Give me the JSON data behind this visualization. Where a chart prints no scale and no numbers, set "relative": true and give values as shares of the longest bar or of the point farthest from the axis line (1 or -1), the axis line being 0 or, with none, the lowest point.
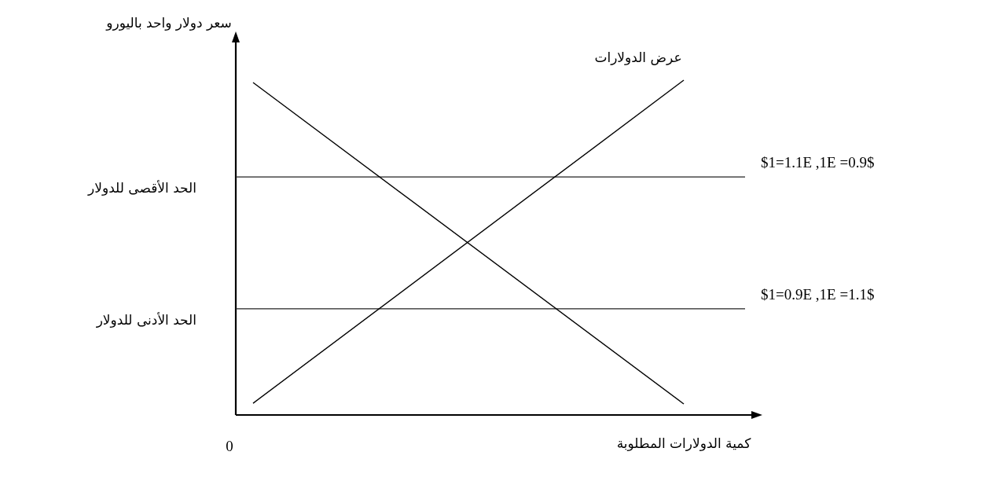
{
  "chart_data": {
    "type": "line",
    "relative": true,
    "categories": [
      null,
      null
    ],
    "xlabel": "كمية الدولارات المطلوبة",
    "ylabel": "سعر دولار واحد باليورو",
    "series": [
      {
        "name": "عرض الدولارات",
        "color": "#000000",
        "values": [
          0.035,
          1
        ]
      },
      {
        "color": "#000000",
        "values": [
          0.993,
          0.033
        ]
      }
    ],
    "ref_lines": [
      {
        "axis": "y",
        "value": 0.711,
        "label": "الحد الأقصى  للدولار",
        "color": "#222222"
      },
      {
        "axis": "y",
        "value": 0.317,
        "label": "الحد الأدنى للدولار",
        "color": "#222222"
      }
    ],
    "annotations": [
      "0",
      "$1=1.1E ,1E =0.9$",
      "$1=0.9E ,1E =1.1$"
    ],
    "marker": "none",
    "line_style": "solid"
  }
}
